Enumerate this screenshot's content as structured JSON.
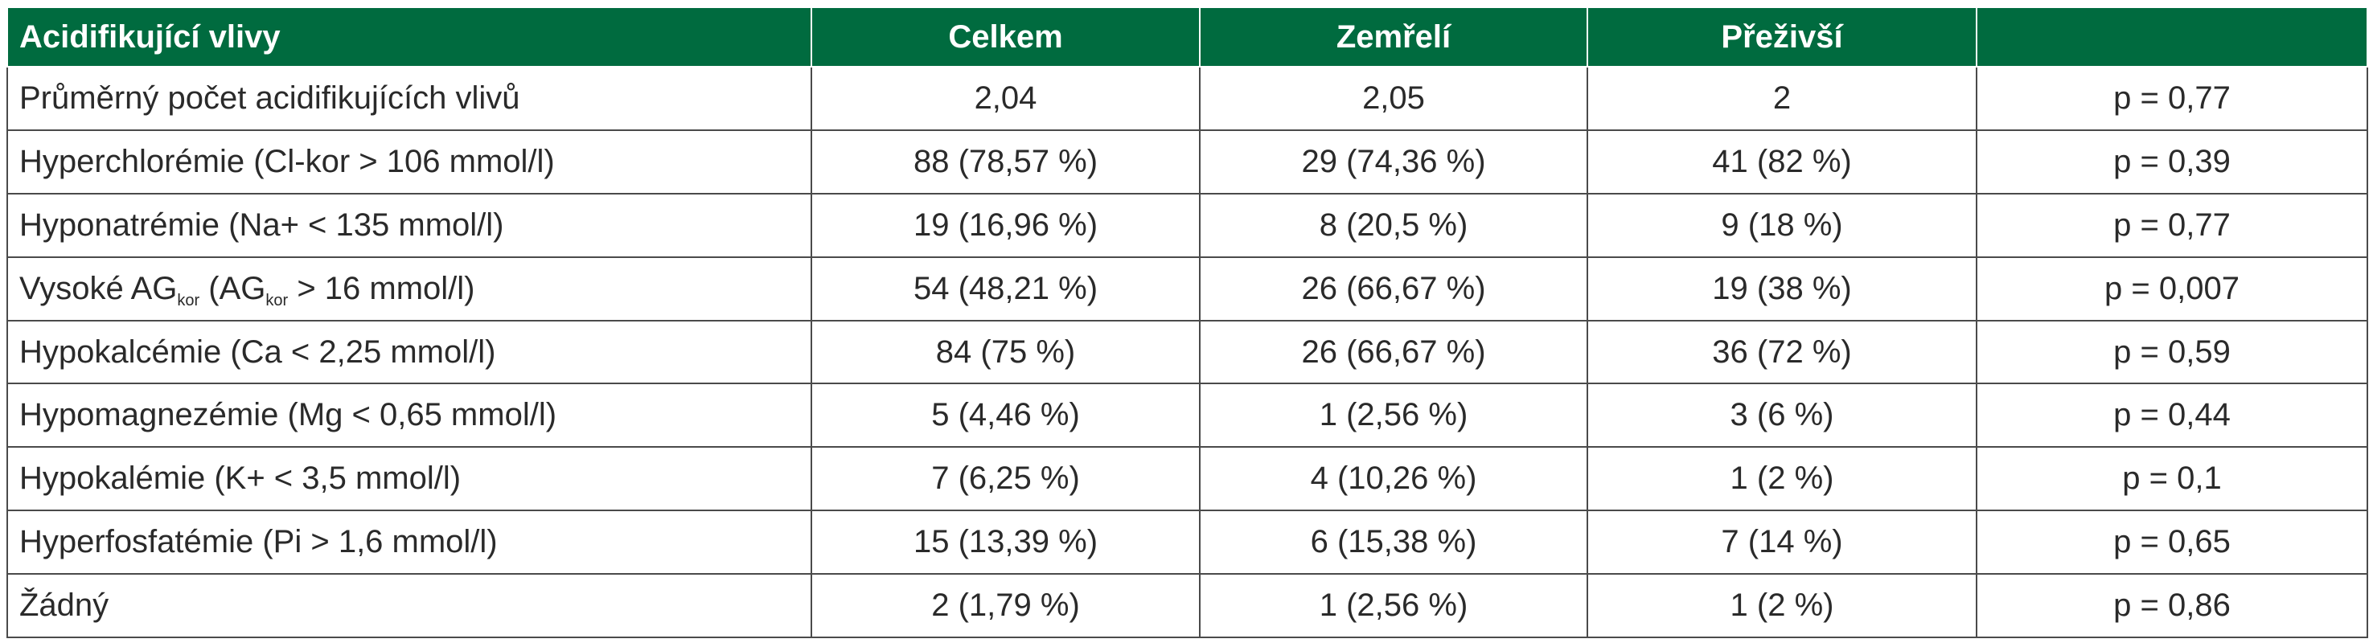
{
  "table": {
    "headers": [
      "Acidifikující vlivy",
      "Celkem",
      "Zemřelí",
      "Přeživší",
      ""
    ],
    "rows": [
      {
        "label": "Průměrný počet acidifikujících vlivů",
        "celkem": "2,04",
        "zemreli": "2,05",
        "prezivsi": "2",
        "p": "p = 0,77"
      },
      {
        "label": "Hyperchlorémie (Cl-kor > 106 mmol/l)",
        "celkem": "88 (78,57 %)",
        "zemreli": "29 (74,36 %)",
        "prezivsi": "41 (82 %)",
        "p": "p = 0,39"
      },
      {
        "label": "Hyponatrémie (Na+ < 135 mmol/l)",
        "celkem": "19 (16,96 %)",
        "zemreli": "8 (20,5 %)",
        "prezivsi": "9 (18 %)",
        "p": "p = 0,77"
      },
      {
        "label_parts": {
          "a": "Vysoké AG",
          "sub1": "kor",
          "b": " (AG",
          "sub2": "kor",
          "c": " > 16 mmol/l)"
        },
        "celkem": "54 (48,21 %)",
        "zemreli": "26 (66,67 %)",
        "prezivsi": "19 (38 %)",
        "p": "p = 0,007"
      },
      {
        "label": "Hypokalcémie (Ca < 2,25 mmol/l)",
        "celkem": "84 (75 %)",
        "zemreli": "26 (66,67 %)",
        "prezivsi": "36 (72 %)",
        "p": "p = 0,59"
      },
      {
        "label": "Hypomagnezémie (Mg < 0,65 mmol/l)",
        "celkem": "5 (4,46 %)",
        "zemreli": "1 (2,56 %)",
        "prezivsi": "3 (6 %)",
        "p": "p = 0,44"
      },
      {
        "label": "Hypokalémie (K+ < 3,5 mmol/l)",
        "celkem": "7 (6,25 %)",
        "zemreli": "4 (10,26 %)",
        "prezivsi": "1 (2 %)",
        "p": "p = 0,1"
      },
      {
        "label": "Hyperfosfatémie (Pi > 1,6 mmol/l)",
        "celkem": "15 (13,39 %)",
        "zemreli": "6 (15,38 %)",
        "prezivsi": "7 (14 %)",
        "p": "p = 0,65"
      },
      {
        "label": "Žádný",
        "celkem": "2 (1,79 %)",
        "zemreli": "1 (2,56 %)",
        "prezivsi": "1 (2 %)",
        "p": "p = 0,86"
      }
    ]
  },
  "colors": {
    "header_bg": "#006b3f",
    "header_text": "#ffffff",
    "grid": "#4a4a4a",
    "body_text": "#2a2a2a"
  }
}
